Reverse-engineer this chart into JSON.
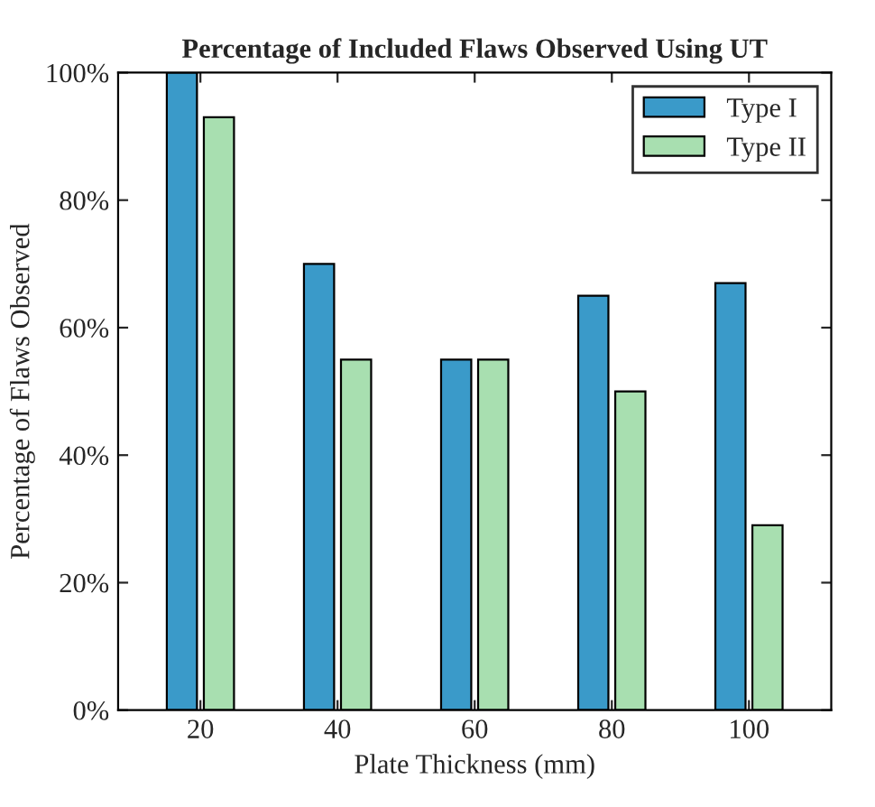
{
  "chart_data": {
    "type": "bar",
    "title": "Percentage of Included Flaws Observed Using UT",
    "xlabel": "Plate Thickness (mm)",
    "ylabel": "Percentage of Flaws Observed",
    "categories": [
      "20",
      "40",
      "60",
      "80",
      "100"
    ],
    "series": [
      {
        "name": "Type I",
        "color": "#3a9ac9",
        "values": [
          100,
          70,
          55,
          65,
          67
        ]
      },
      {
        "name": "Type II",
        "color": "#a8dfb0",
        "values": [
          93,
          55,
          55,
          50,
          29
        ]
      }
    ],
    "ylim": [
      0,
      100
    ],
    "yticks": [
      {
        "value": 0,
        "label": "0%"
      },
      {
        "value": 20,
        "label": "20%"
      },
      {
        "value": 40,
        "label": "40%"
      },
      {
        "value": 60,
        "label": "60%"
      },
      {
        "value": 80,
        "label": "80%"
      },
      {
        "value": 100,
        "label": "100%"
      }
    ],
    "grid": false,
    "legend": "top right"
  }
}
